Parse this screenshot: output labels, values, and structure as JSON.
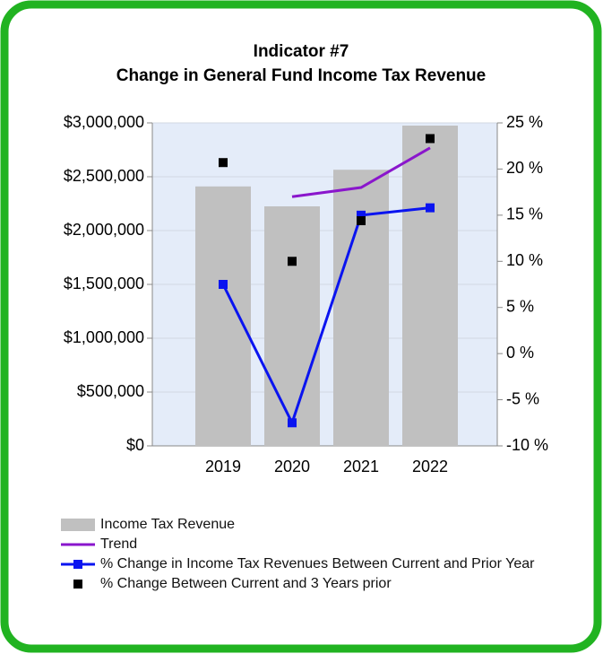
{
  "chart_data": {
    "type": "combo",
    "title": [
      "Indicator #7",
      "Change in General Fund Income Tax Revenue"
    ],
    "categories": [
      "2019",
      "2020",
      "2021",
      "2022"
    ],
    "ylim": [
      0,
      3000000
    ],
    "yticks": [
      {
        "value": 0,
        "label": "$0"
      },
      {
        "value": 500000,
        "label": "$500,000"
      },
      {
        "value": 1000000,
        "label": "$1,000,000"
      },
      {
        "value": 1500000,
        "label": "$1,500,000"
      },
      {
        "value": 2000000,
        "label": "$2,000,000"
      },
      {
        "value": 2500000,
        "label": "$2,500,000"
      },
      {
        "value": 3000000,
        "label": "$3,000,000"
      }
    ],
    "y2lim": [
      -10,
      25
    ],
    "y2ticks": [
      {
        "value": -10,
        "label": "-10 %"
      },
      {
        "value": -5,
        "label": "-5 %"
      },
      {
        "value": 0,
        "label": "0 %"
      },
      {
        "value": 5,
        "label": "5 %"
      },
      {
        "value": 10,
        "label": "10 %"
      },
      {
        "value": 15,
        "label": "15 %"
      },
      {
        "value": 20,
        "label": "20 %"
      },
      {
        "value": 25,
        "label": "25 %"
      }
    ],
    "grid": true,
    "series": [
      {
        "name": "Income Tax Revenue",
        "type": "bar",
        "color": "#c0c0c0",
        "values": [
          2410000,
          2225000,
          2565000,
          2975000
        ]
      },
      {
        "name": "Trend",
        "type": "line",
        "color": "#8a16cc",
        "axis": "y2",
        "values": [
          null,
          17.0,
          18.0,
          22.3
        ]
      },
      {
        "name": "% Change in Income Tax Revenues Between Current and Prior Year",
        "type": "line-marker",
        "color": "#0a14f0",
        "axis": "y2",
        "values": [
          7.5,
          -7.5,
          15.0,
          15.8
        ]
      },
      {
        "name": "% Change Between Current and 3 Years prior",
        "type": "marker",
        "color": "#000000",
        "axis": "y2",
        "values": [
          20.7,
          10.0,
          14.4,
          23.3
        ]
      }
    ]
  }
}
